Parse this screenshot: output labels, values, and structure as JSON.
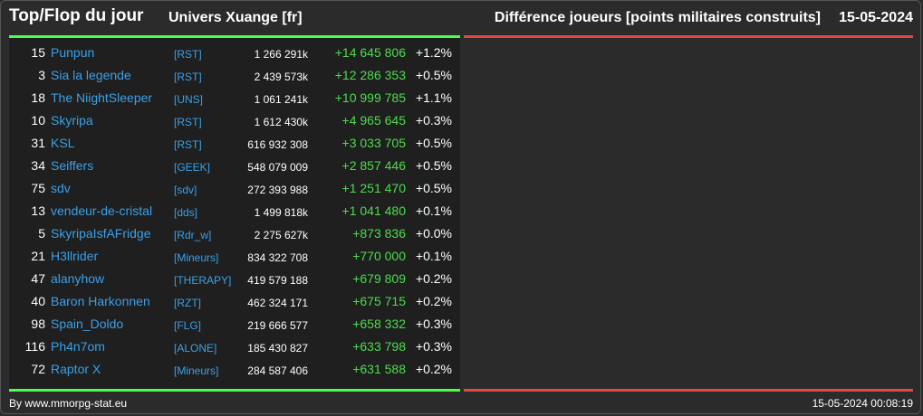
{
  "header": {
    "title": "Top/Flop du jour",
    "universe": "Univers Xuange [fr]",
    "metric": "Différence joueurs [points militaires construits]",
    "date": "15-05-2024"
  },
  "colors": {
    "background": "#2b2b2b",
    "panel": "#1f1f1f",
    "top_accent": "#4cff4c",
    "flop_accent": "#e04848",
    "link": "#3aa0e8",
    "gain": "#4cdc4c"
  },
  "top_players": [
    {
      "rank": "15",
      "name": "Punpun",
      "alliance": "[RST]",
      "points": "1 266 291k",
      "diff": "+14 645 806",
      "pct": "+1.2%"
    },
    {
      "rank": "3",
      "name": "Sia la legende",
      "alliance": "[RST]",
      "points": "2 439 573k",
      "diff": "+12 286 353",
      "pct": "+0.5%"
    },
    {
      "rank": "18",
      "name": "The NiightSleeper",
      "alliance": "[UNS]",
      "points": "1 061 241k",
      "diff": "+10 999 785",
      "pct": "+1.1%"
    },
    {
      "rank": "10",
      "name": "Skyripa",
      "alliance": "[RST]",
      "points": "1 612 430k",
      "diff": "+4 965 645",
      "pct": "+0.3%"
    },
    {
      "rank": "31",
      "name": "KSL",
      "alliance": "[RST]",
      "points": "616 932 308",
      "diff": "+3 033 705",
      "pct": "+0.5%"
    },
    {
      "rank": "34",
      "name": "Seiffers",
      "alliance": "[GEEK]",
      "points": "548 079 009",
      "diff": "+2 857 446",
      "pct": "+0.5%"
    },
    {
      "rank": "75",
      "name": "sdv",
      "alliance": "[sdv]",
      "points": "272 393 988",
      "diff": "+1 251 470",
      "pct": "+0.5%"
    },
    {
      "rank": "13",
      "name": "vendeur-de-cristal",
      "alliance": "[dds]",
      "points": "1 499 818k",
      "diff": "+1 041 480",
      "pct": "+0.1%"
    },
    {
      "rank": "5",
      "name": "SkyripaIsfAFridge",
      "alliance": "[Rdr_w]",
      "points": "2 275 627k",
      "diff": "+873 836",
      "pct": "+0.0%"
    },
    {
      "rank": "21",
      "name": "H3llrider",
      "alliance": "[Mineurs]",
      "points": "834 322 708",
      "diff": "+770 000",
      "pct": "+0.1%"
    },
    {
      "rank": "47",
      "name": "alanyhow",
      "alliance": "[THERAPY]",
      "points": "419 579 188",
      "diff": "+679 809",
      "pct": "+0.2%"
    },
    {
      "rank": "40",
      "name": "Baron Harkonnen",
      "alliance": "[RZT]",
      "points": "462 324 171",
      "diff": "+675 715",
      "pct": "+0.2%"
    },
    {
      "rank": "98",
      "name": "Spain_Doldo",
      "alliance": "[FLG]",
      "points": "219 666 577",
      "diff": "+658 332",
      "pct": "+0.3%"
    },
    {
      "rank": "116",
      "name": "Ph4n7om",
      "alliance": "[ALONE]",
      "points": "185 430 827",
      "diff": "+633 798",
      "pct": "+0.3%"
    },
    {
      "rank": "72",
      "name": "Raptor X",
      "alliance": "[Mineurs]",
      "points": "284 587 406",
      "diff": "+631 588",
      "pct": "+0.2%"
    }
  ],
  "footer": {
    "credit": "By www.mmorpg-stat.eu",
    "generated": "15-05-2024 00:08:19"
  }
}
